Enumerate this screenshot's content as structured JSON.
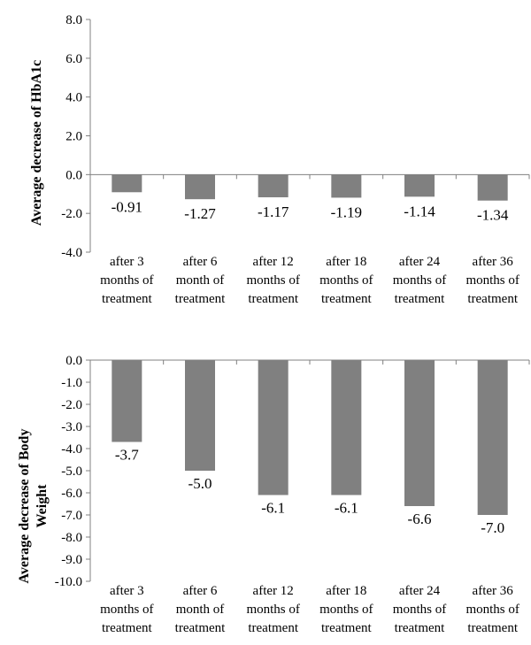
{
  "chart_data": [
    {
      "type": "bar",
      "ylabel": "Average decrease of HbA1c",
      "xlabel": "",
      "ylim": [
        -4.0,
        8.0
      ],
      "yticks": [
        "8.0",
        "6.0",
        "4.0",
        "2.0",
        "0.0",
        "-2.0",
        "-4.0"
      ],
      "categories": [
        [
          "after 3",
          "months of",
          "treatment"
        ],
        [
          "after 6",
          "month of",
          "treatment"
        ],
        [
          "after 12",
          "months of",
          "treatment"
        ],
        [
          "after 18",
          "months of",
          "treatment"
        ],
        [
          "after 24",
          "months of",
          "treatment"
        ],
        [
          "after 36",
          "months of",
          "treatment"
        ]
      ],
      "values": [
        -0.91,
        -1.27,
        -1.17,
        -1.19,
        -1.14,
        -1.34
      ],
      "data_labels": [
        "-0.91",
        "-1.27",
        "-1.17",
        "-1.19",
        "-1.14",
        "-1.34"
      ],
      "bar_color": "#808080",
      "grid": false
    },
    {
      "type": "bar",
      "ylabel": "Average decrease of Body Weight",
      "xlabel": "",
      "ylim": [
        -10.0,
        0.0
      ],
      "yticks": [
        "0.0",
        "-1.0",
        "-2.0",
        "-3.0",
        "-4.0",
        "-5.0",
        "-6.0",
        "-7.0",
        "-8.0",
        "-9.0",
        "-10.0"
      ],
      "categories": [
        [
          "after 3",
          "months of",
          "treatment"
        ],
        [
          "after 6",
          "month of",
          "treatment"
        ],
        [
          "after 12",
          "months of",
          "treatment"
        ],
        [
          "after 18",
          "months of",
          "treatment"
        ],
        [
          "after 24",
          "months of",
          "treatment"
        ],
        [
          "after 36",
          "months of",
          "treatment"
        ]
      ],
      "values": [
        -3.7,
        -5.0,
        -6.1,
        -6.1,
        -6.6,
        -7.0
      ],
      "data_labels": [
        "-3.7",
        "-5.0",
        "-6.1",
        "-6.1",
        "-6.6",
        "-7.0"
      ],
      "bar_color": "#808080",
      "grid": false
    }
  ]
}
